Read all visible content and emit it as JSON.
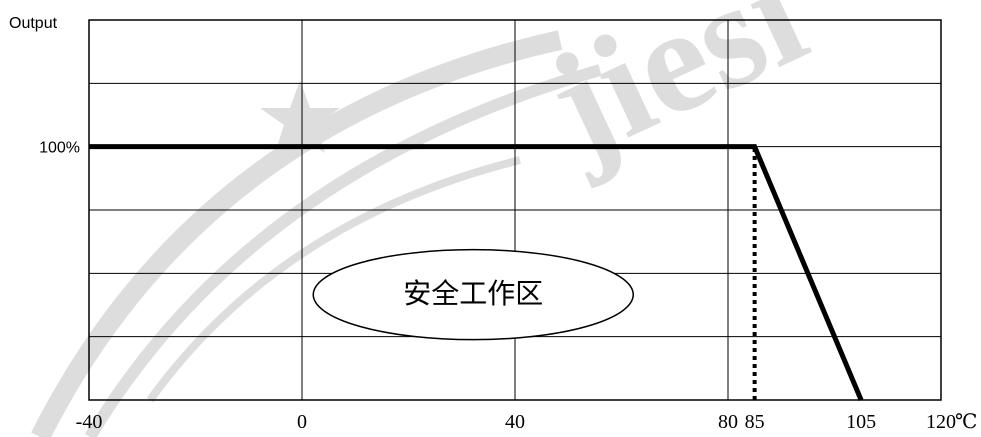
{
  "chart_data": {
    "type": "line",
    "ylabel": "Output",
    "xunit": "℃",
    "y_tick_labels": [
      {
        "value": 100,
        "label": "100%"
      }
    ],
    "x_tick_labels": [
      {
        "value": -40,
        "label": "-40"
      },
      {
        "value": 0,
        "label": "0"
      },
      {
        "value": 40,
        "label": "40"
      },
      {
        "value": 80,
        "label": "80"
      },
      {
        "value": 85,
        "label": "85"
      },
      {
        "value": 105,
        "label": "105"
      },
      {
        "value": 120,
        "label": "120"
      }
    ],
    "xlim": [
      -40,
      120
    ],
    "ylim": [
      0,
      150
    ],
    "grid": true,
    "vertical_gridlines_at": [
      0,
      40,
      80
    ],
    "horizontal_gridlines_at": [
      25,
      50,
      75,
      100,
      125
    ],
    "series": [
      {
        "x": [
          -40,
          85,
          105
        ],
        "y": [
          100,
          100,
          0
        ],
        "style": "solid",
        "color": "#000000"
      }
    ],
    "reference_lines": [
      {
        "x": [
          85,
          85
        ],
        "y": [
          0,
          100
        ],
        "style": "dotted",
        "color": "#000000"
      }
    ],
    "annotations": [
      {
        "text": "安全工作区",
        "shape": "ellipse",
        "x": 10,
        "y": 40
      }
    ],
    "watermark": {
      "text": "jiesi"
    }
  }
}
